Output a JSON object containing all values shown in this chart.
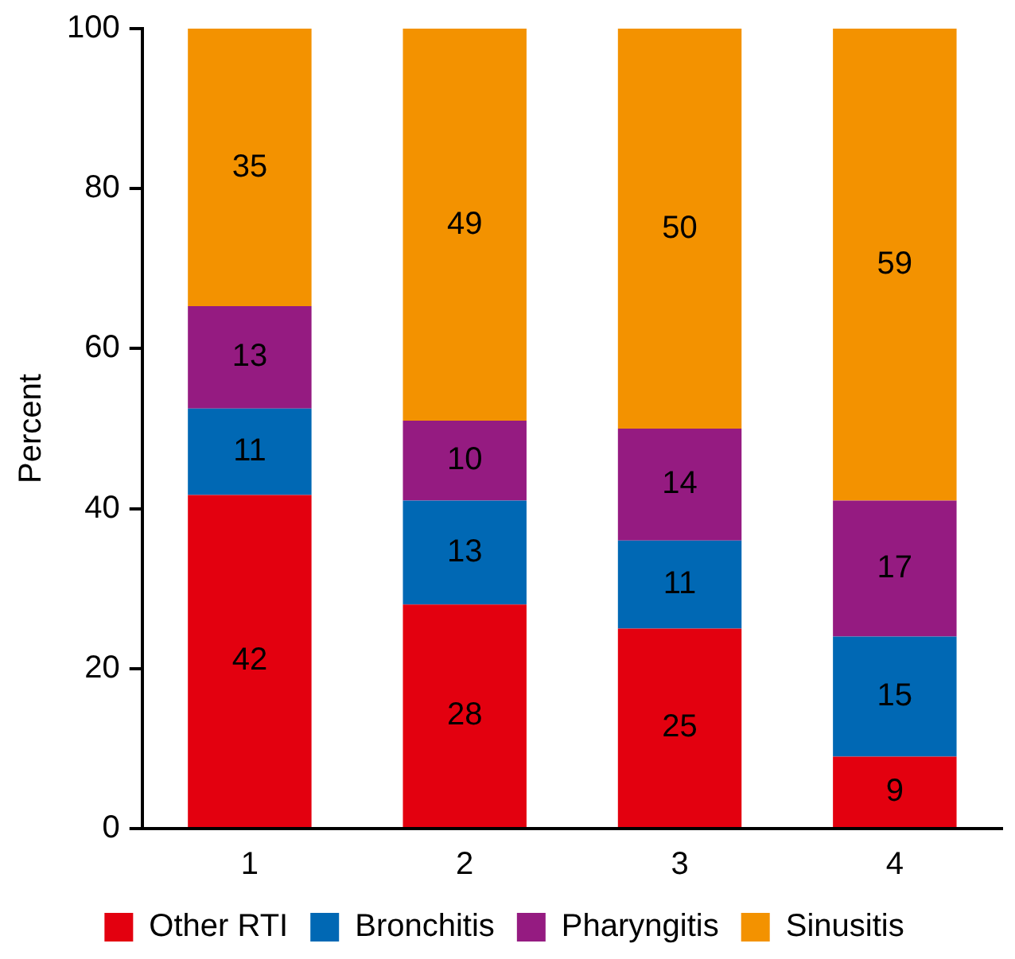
{
  "chart_data": {
    "type": "bar",
    "stacked": true,
    "ylabel": "Percent",
    "categories": [
      "1",
      "2",
      "3",
      "4"
    ],
    "series": [
      {
        "name": "Other RTI",
        "color": "#e3000f",
        "values": [
          41.7,
          28,
          25,
          9
        ],
        "value_labels": [
          "42",
          "28",
          "25",
          "9"
        ]
      },
      {
        "name": "Bronchitis",
        "color": "#0068b4",
        "values": [
          10.8,
          13,
          11,
          15
        ],
        "value_labels": [
          "11",
          "13",
          "11",
          "15"
        ]
      },
      {
        "name": "Pharyngitis",
        "color": "#951b81",
        "values": [
          12.8,
          10,
          14,
          17
        ],
        "value_labels": [
          "13",
          "10",
          "14",
          "17"
        ]
      },
      {
        "name": "Sinusitis",
        "color": "#f39200",
        "values": [
          34.7,
          49,
          50,
          59
        ],
        "value_labels": [
          "35",
          "49",
          "50",
          "59"
        ]
      }
    ],
    "ylim": [
      0,
      100
    ],
    "yticks": [
      0,
      20,
      40,
      60,
      80,
      100
    ],
    "grid": false,
    "legend": "bottom"
  }
}
